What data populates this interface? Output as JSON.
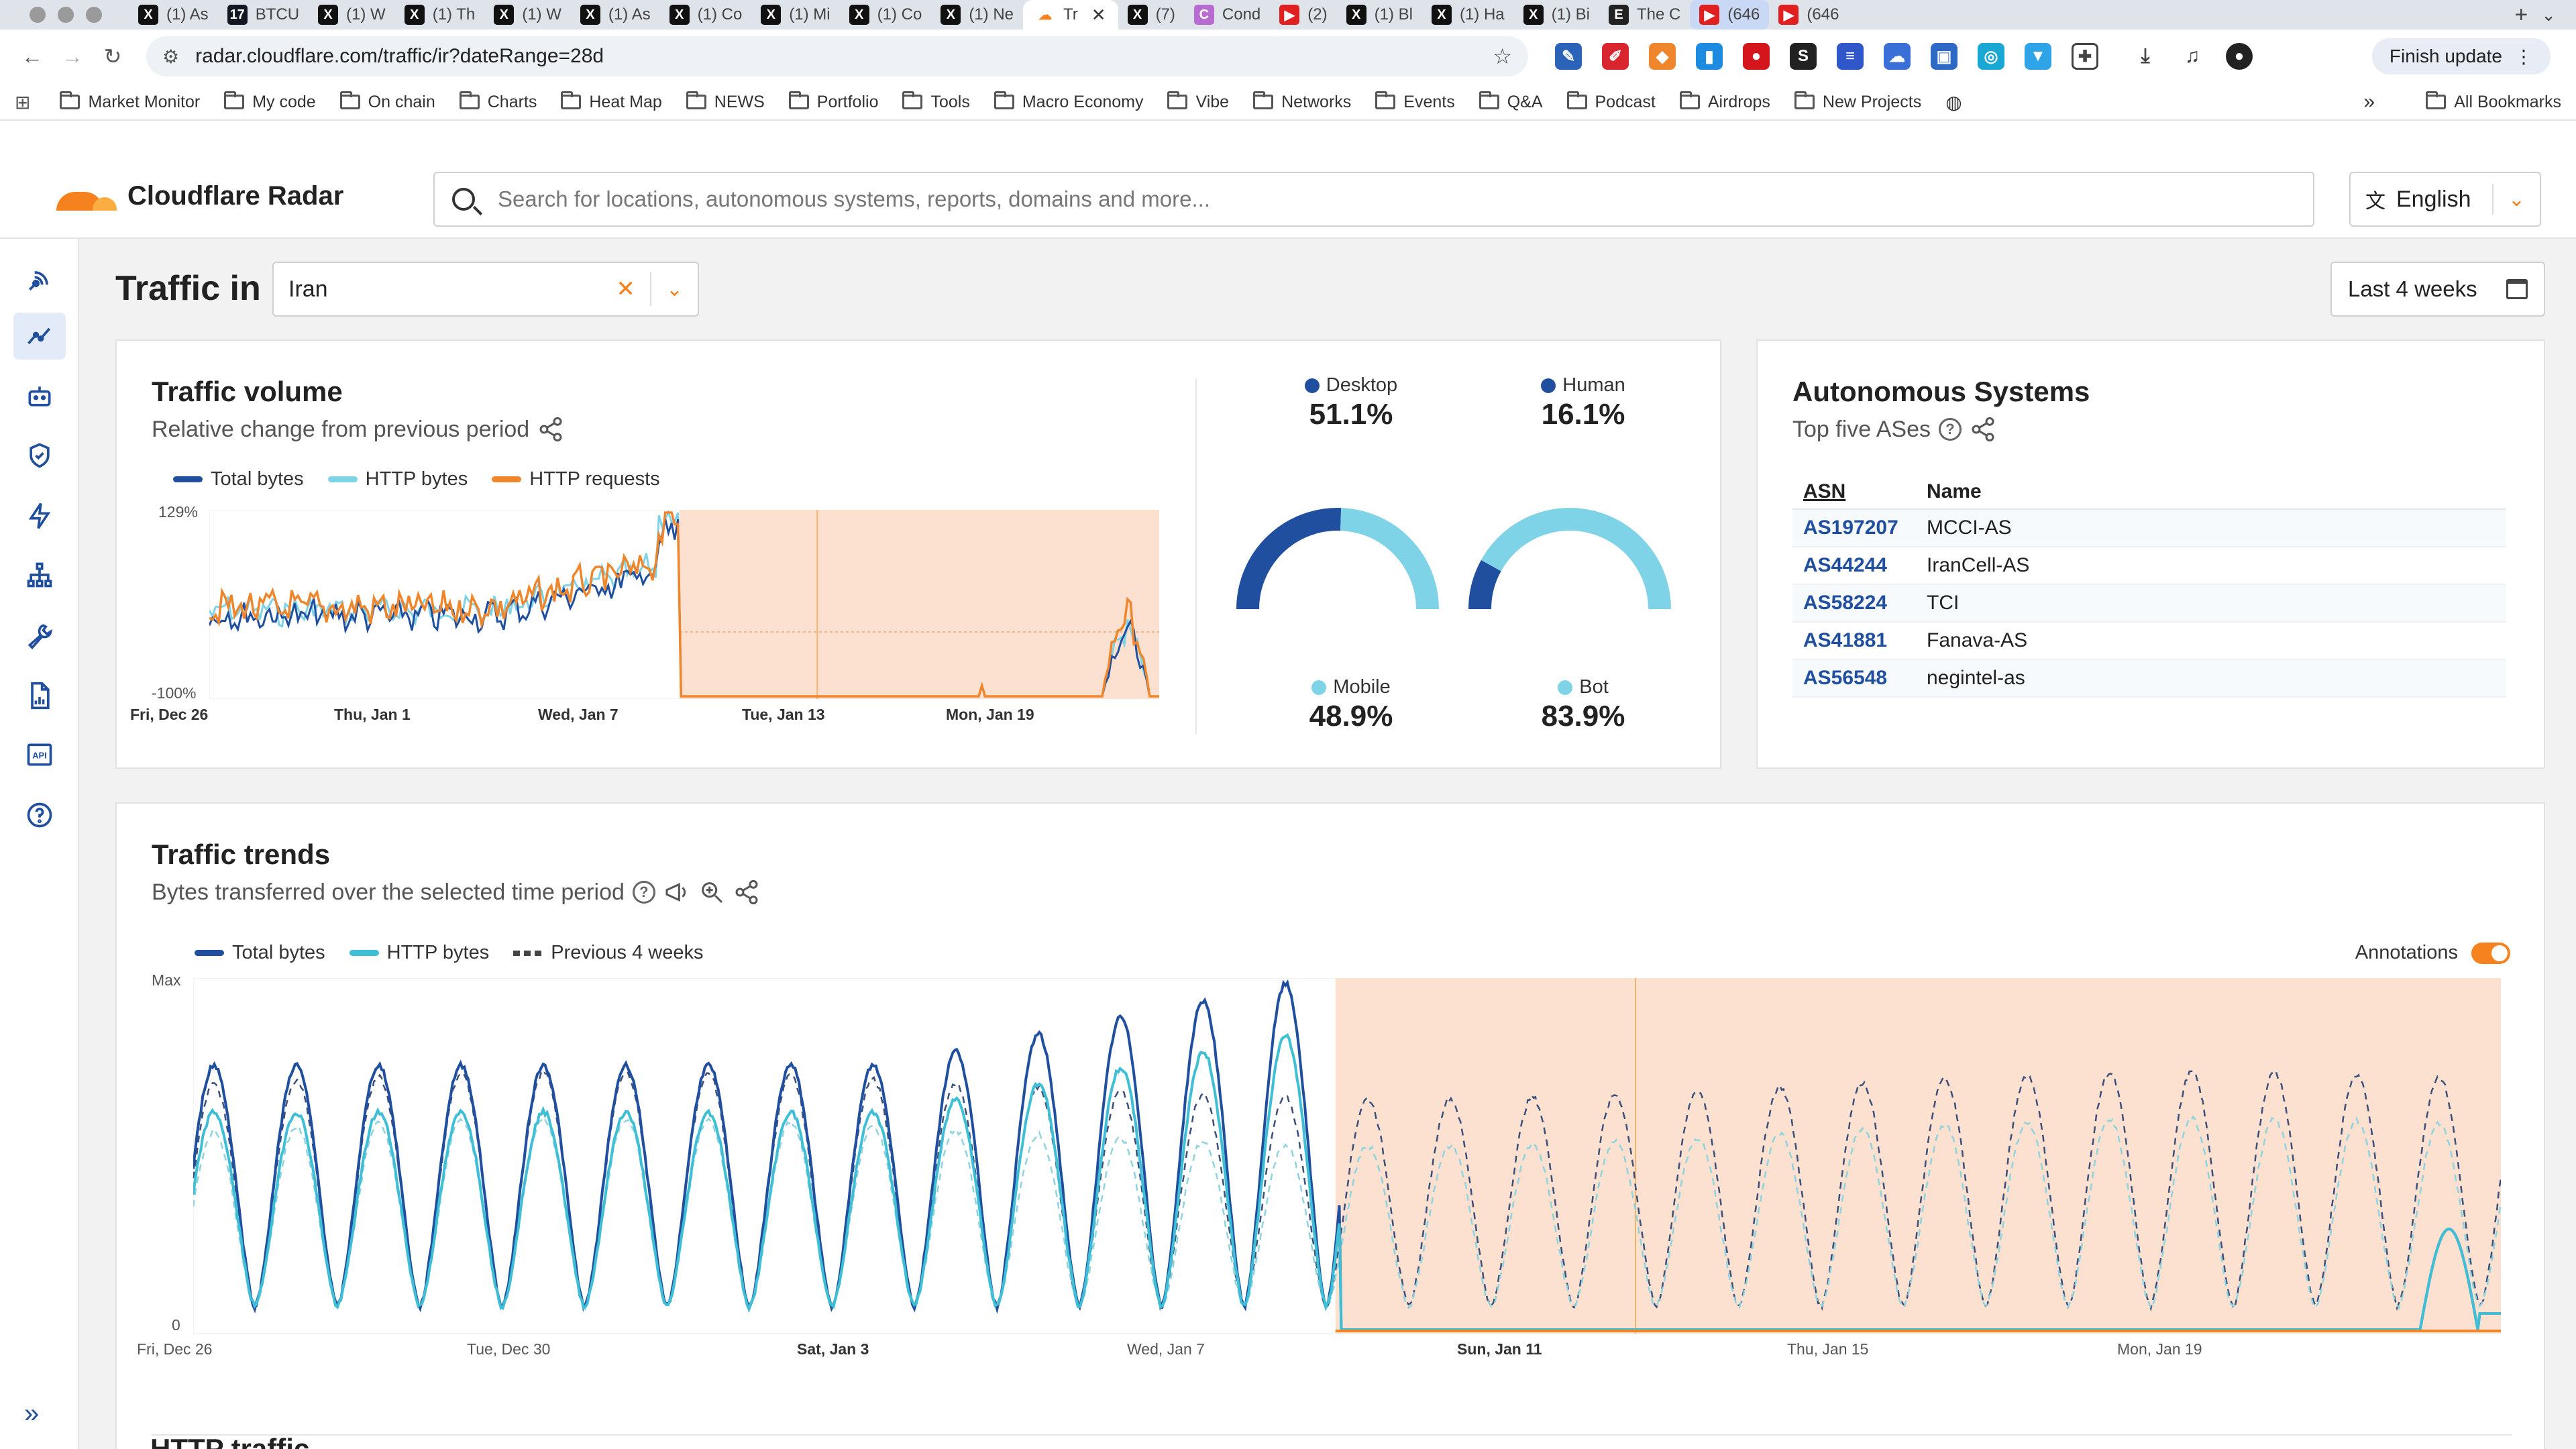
{
  "browser": {
    "tabs": [
      {
        "icon": "X",
        "label": "(1) As"
      },
      {
        "icon": "TV",
        "label": "BTCU"
      },
      {
        "icon": "X",
        "label": "(1) W"
      },
      {
        "icon": "X",
        "label": "(1) Th"
      },
      {
        "icon": "X",
        "label": "(1) W"
      },
      {
        "icon": "X",
        "label": "(1) As"
      },
      {
        "icon": "X",
        "label": "(1) Co"
      },
      {
        "icon": "X",
        "label": "(1) Mi"
      },
      {
        "icon": "X",
        "label": "(1) Co"
      },
      {
        "icon": "X",
        "label": "(1) Ne"
      },
      {
        "icon": "CF",
        "label": "Tr",
        "active": true
      },
      {
        "icon": "X",
        "label": "(7)"
      },
      {
        "icon": "C",
        "label": "Cond"
      },
      {
        "icon": "YT",
        "label": "(2)"
      },
      {
        "icon": "X",
        "label": "(1) Bl"
      },
      {
        "icon": "X",
        "label": "(1) Ha"
      },
      {
        "icon": "X",
        "label": "(1) Bi"
      },
      {
        "icon": "E",
        "label": "The C"
      },
      {
        "icon": "YT",
        "label": "(646",
        "highlight": true
      },
      {
        "icon": "YT",
        "label": "(646"
      }
    ],
    "url": "radar.cloudflare.com/traffic/ir?dateRange=28d",
    "finish_update": "Finish update",
    "bookmarks": [
      "Market Monitor",
      "My code",
      "On chain",
      "Charts",
      "Heat Map",
      "NEWS",
      "Portfolio",
      "Tools",
      "Macro Economy",
      "Vibe",
      "Networks",
      "Events",
      "Q&A",
      "Podcast",
      "Airdrops",
      "New Projects"
    ],
    "all_bookmarks": "All Bookmarks",
    "overflow": "»"
  },
  "app": {
    "brand": "Cloudflare Radar",
    "search_placeholder": "Search for locations, autonomous systems, reports, domains and more...",
    "language": "English",
    "page_title": "Traffic in",
    "location": "Iran",
    "date_range": "Last 4 weeks"
  },
  "traffic_volume": {
    "title": "Traffic volume",
    "subtitle": "Relative change from previous period",
    "legend": [
      {
        "name": "Total bytes",
        "color": "#1f4f9e"
      },
      {
        "name": "HTTP bytes",
        "color": "#7fd3e6"
      },
      {
        "name": "HTTP requests",
        "color": "#f0862c"
      }
    ],
    "y_top": "129%",
    "y_bottom": "-100%",
    "x_ticks": [
      "Fri, Dec 26",
      "Thu, Jan 1",
      "Wed, Jan 7",
      "Tue, Jan 13",
      "Mon, Jan 19"
    ]
  },
  "device": {
    "top_left_label": "Desktop",
    "top_left_value": "51.1%",
    "bottom_left_label": "Mobile",
    "bottom_left_value": "48.9%",
    "top_right_label": "Human",
    "top_right_value": "16.1%",
    "bottom_right_label": "Bot",
    "bottom_right_value": "83.9%",
    "desktop_fraction": 0.511,
    "human_fraction": 0.161,
    "dark_color": "#1f4f9e",
    "light_color": "#7fd3e6"
  },
  "autonomous_systems": {
    "title": "Autonomous Systems",
    "subtitle": "Top five ASes",
    "col_asn": "ASN",
    "col_name": "Name",
    "rows": [
      {
        "asn": "AS197207",
        "name": "MCCI-AS"
      },
      {
        "asn": "AS44244",
        "name": "IranCell-AS"
      },
      {
        "asn": "AS58224",
        "name": "TCI"
      },
      {
        "asn": "AS41881",
        "name": "Fanava-AS"
      },
      {
        "asn": "AS56548",
        "name": "negintel-as"
      }
    ]
  },
  "traffic_trends": {
    "title": "Traffic trends",
    "subtitle": "Bytes transferred over the selected time period",
    "legend": [
      {
        "name": "Total bytes",
        "color": "#1f4f9e",
        "style": "solid"
      },
      {
        "name": "HTTP bytes",
        "color": "#3fbfd6",
        "style": "solid"
      },
      {
        "name": "Previous 4 weeks",
        "color": "#444",
        "style": "dashed"
      }
    ],
    "annotations_label": "Annotations",
    "y_top": "Max",
    "y_bottom": "0",
    "x_ticks": [
      {
        "label": "Fri, Dec 26",
        "bold": false
      },
      {
        "label": "Tue, Dec 30",
        "bold": false
      },
      {
        "label": "Sat, Jan 3",
        "bold": true
      },
      {
        "label": "Wed, Jan 7",
        "bold": false
      },
      {
        "label": "Sun, Jan 11",
        "bold": true
      },
      {
        "label": "Thu, Jan 15",
        "bold": false
      },
      {
        "label": "Mon, Jan 19",
        "bold": false
      }
    ]
  },
  "next_section": "HTTP traffic",
  "chart_data": [
    {
      "type": "line",
      "title": "Traffic volume",
      "ylim_labels": [
        "-100%",
        "129%"
      ],
      "x_range": [
        "Dec 26",
        "Jan 22"
      ],
      "outage_start": "Jan 8",
      "series": [
        {
          "name": "Total bytes",
          "note": "fluctuates near 0% until Jan 8, then drops to -100%"
        },
        {
          "name": "HTTP bytes"
        },
        {
          "name": "HTTP requests"
        }
      ],
      "legend": "top-left"
    },
    {
      "type": "line",
      "title": "Traffic trends",
      "ylim_labels": [
        "0",
        "Max"
      ],
      "x_range": [
        "Dec 26",
        "Jan 22"
      ],
      "outage_start": "Jan 8",
      "series": [
        {
          "name": "Total bytes"
        },
        {
          "name": "HTTP bytes"
        },
        {
          "name": "Previous 4 weeks"
        }
      ],
      "legend": "top-left"
    }
  ]
}
